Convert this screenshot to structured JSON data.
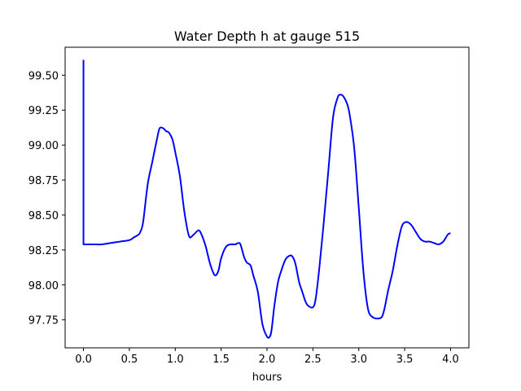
{
  "chart_data": {
    "type": "line",
    "title": "Water Depth h at gauge 515",
    "xlabel": "hours",
    "ylabel": "",
    "xlim": [
      -0.2,
      4.2
    ],
    "ylim": [
      97.55,
      99.7
    ],
    "xticks": [
      0.0,
      0.5,
      1.0,
      1.5,
      2.0,
      2.5,
      3.0,
      3.5,
      4.0
    ],
    "xtick_labels": [
      "0.0",
      "0.5",
      "1.0",
      "1.5",
      "2.0",
      "2.5",
      "3.0",
      "3.5",
      "4.0"
    ],
    "yticks": [
      97.75,
      98.0,
      98.25,
      98.5,
      98.75,
      99.0,
      99.25,
      99.5
    ],
    "ytick_labels": [
      "97.75",
      "98.00",
      "98.25",
      "98.50",
      "98.75",
      "99.00",
      "99.25",
      "99.50"
    ],
    "grid": false,
    "series": [
      {
        "color": "#0000ff",
        "x": [
          0.0,
          0.0,
          0.0,
          0.1,
          0.2,
          0.3,
          0.4,
          0.5,
          0.55,
          0.6,
          0.62,
          0.65,
          0.7,
          0.75,
          0.8,
          0.83,
          0.87,
          0.9,
          0.93,
          0.97,
          1.0,
          1.05,
          1.1,
          1.15,
          1.2,
          1.25,
          1.28,
          1.33,
          1.38,
          1.43,
          1.47,
          1.5,
          1.55,
          1.6,
          1.65,
          1.7,
          1.72,
          1.75,
          1.78,
          1.82,
          1.85,
          1.9,
          1.95,
          2.0,
          2.03,
          2.05,
          2.08,
          2.12,
          2.15,
          2.2,
          2.25,
          2.28,
          2.31,
          2.35,
          2.38,
          2.42,
          2.45,
          2.5,
          2.53,
          2.57,
          2.62,
          2.67,
          2.72,
          2.77,
          2.8,
          2.83,
          2.87,
          2.9,
          2.95,
          3.0,
          3.05,
          3.1,
          3.15,
          3.2,
          3.25,
          3.28,
          3.32,
          3.37,
          3.42,
          3.47,
          3.52,
          3.57,
          3.62,
          3.67,
          3.72,
          3.77,
          3.82,
          3.87,
          3.92,
          3.97,
          4.0
        ],
        "y": [
          99.61,
          98.29,
          98.29,
          98.29,
          98.29,
          98.3,
          98.31,
          98.32,
          98.34,
          98.36,
          98.38,
          98.45,
          98.72,
          98.88,
          99.04,
          99.12,
          99.12,
          99.1,
          99.09,
          99.04,
          98.95,
          98.78,
          98.52,
          98.35,
          98.36,
          98.39,
          98.37,
          98.28,
          98.15,
          98.07,
          98.1,
          98.19,
          98.27,
          98.29,
          98.29,
          98.3,
          98.27,
          98.2,
          98.16,
          98.14,
          98.07,
          97.95,
          97.72,
          97.63,
          97.63,
          97.68,
          97.85,
          98.02,
          98.09,
          98.18,
          98.21,
          98.2,
          98.15,
          98.02,
          97.96,
          97.88,
          97.85,
          97.84,
          97.9,
          98.12,
          98.46,
          98.83,
          99.2,
          99.34,
          99.36,
          99.35,
          99.3,
          99.22,
          98.98,
          98.55,
          98.1,
          97.83,
          97.77,
          97.76,
          97.77,
          97.83,
          97.96,
          98.1,
          98.28,
          98.42,
          98.45,
          98.43,
          98.38,
          98.33,
          98.31,
          98.31,
          98.3,
          98.29,
          98.31,
          98.36,
          98.37
        ]
      }
    ]
  }
}
